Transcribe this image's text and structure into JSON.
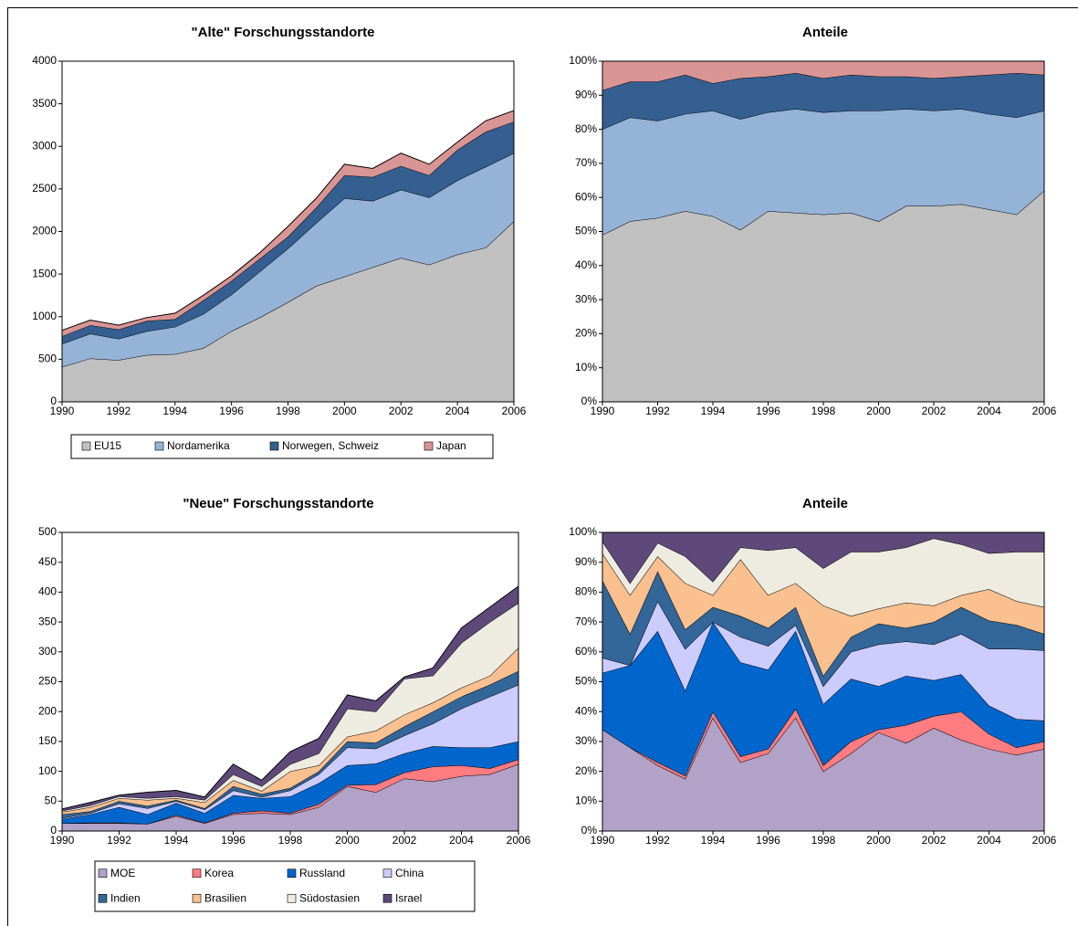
{
  "chart_data": [
    {
      "type": "area",
      "title": "\"Alte\" Forschungsstandorte",
      "legend": "bottom",
      "x": [
        1990,
        1991,
        1992,
        1993,
        1994,
        1995,
        1996,
        1997,
        1998,
        1999,
        2000,
        2001,
        2002,
        2003,
        2004,
        2005,
        2006
      ],
      "xlim": [
        1990,
        2006
      ],
      "xticks": [
        1990,
        1992,
        1994,
        1996,
        1998,
        2000,
        2002,
        2004,
        2006
      ],
      "ylim": [
        0,
        4000
      ],
      "yticks": [
        0,
        500,
        1000,
        1500,
        2000,
        2500,
        3000,
        3500,
        4000
      ],
      "series": [
        {
          "name": "EU15",
          "color": "#c0c0c0",
          "values": [
            410,
            510,
            490,
            550,
            560,
            630,
            830,
            990,
            1170,
            1360,
            1470,
            1580,
            1690,
            1610,
            1730,
            1810,
            2120
          ]
        },
        {
          "name": "Nordamerika",
          "color": "#95b3d7",
          "values": [
            270,
            290,
            250,
            280,
            320,
            400,
            430,
            540,
            630,
            740,
            920,
            780,
            800,
            790,
            870,
            950,
            800
          ]
        },
        {
          "name": "Norwegen, Schweiz",
          "color": "#355f91",
          "values": [
            90,
            100,
            110,
            120,
            90,
            160,
            160,
            150,
            140,
            180,
            270,
            280,
            280,
            260,
            360,
            410,
            370
          ]
        },
        {
          "name": "Japan",
          "color": "#d99594",
          "values": [
            70,
            60,
            50,
            40,
            70,
            60,
            60,
            70,
            120,
            110,
            130,
            100,
            150,
            130,
            90,
            130,
            130
          ]
        }
      ]
    },
    {
      "type": "area",
      "title": "Anteile",
      "x": [
        1990,
        1991,
        1992,
        1993,
        1994,
        1995,
        1996,
        1997,
        1998,
        1999,
        2000,
        2001,
        2002,
        2003,
        2004,
        2005,
        2006
      ],
      "xlim": [
        1990,
        2006
      ],
      "xticks": [
        1990,
        1992,
        1994,
        1996,
        1998,
        2000,
        2002,
        2004,
        2006
      ],
      "ylim": [
        0,
        100
      ],
      "yticks": [
        {
          "value": 0,
          "label": "0%"
        },
        {
          "value": 10,
          "label": "10%"
        },
        {
          "value": 20,
          "label": "20%"
        },
        {
          "value": 30,
          "label": "30%"
        },
        {
          "value": 40,
          "label": "40%"
        },
        {
          "value": 50,
          "label": "50%"
        },
        {
          "value": 60,
          "label": "60%"
        },
        {
          "value": 70,
          "label": "70%"
        },
        {
          "value": 80,
          "label": "80%"
        },
        {
          "value": 90,
          "label": "90%"
        },
        {
          "value": 100,
          "label": "100%"
        }
      ],
      "series": [
        {
          "color": "#c0c0c0",
          "values": [
            49,
            53,
            54,
            56,
            54.5,
            50.5,
            56,
            55.5,
            55,
            55.5,
            53,
            57.5,
            57.5,
            58,
            56.5,
            55,
            62
          ]
        },
        {
          "color": "#95b3d7",
          "values": [
            31,
            30.5,
            28.5,
            28.5,
            31,
            32.5,
            29,
            30.5,
            30,
            30,
            32.5,
            28.5,
            28,
            28,
            28,
            28.5,
            23.5
          ]
        },
        {
          "color": "#355f91",
          "values": [
            11.5,
            10.5,
            11.5,
            11.5,
            8,
            12,
            10.5,
            10.5,
            10,
            10.5,
            10,
            9.5,
            9.5,
            9.5,
            11.5,
            13,
            10.5
          ]
        },
        {
          "color": "#d99594",
          "values": [
            8.5,
            6,
            6,
            4,
            6.5,
            5,
            4.5,
            3.5,
            5,
            4,
            4.5,
            4.5,
            5,
            4.5,
            4,
            3.5,
            4
          ]
        }
      ]
    },
    {
      "type": "area",
      "title": "\"Neue\" Forschungsstandorte",
      "legend": "bottom",
      "x": [
        1990,
        1991,
        1992,
        1993,
        1994,
        1995,
        1996,
        1997,
        1998,
        1999,
        2000,
        2001,
        2002,
        2003,
        2004,
        2005,
        2006
      ],
      "xlim": [
        1990,
        2006
      ],
      "xticks": [
        1990,
        1992,
        1994,
        1996,
        1998,
        2000,
        2002,
        2004,
        2006
      ],
      "ylim": [
        0,
        500
      ],
      "yticks": [
        0,
        50,
        100,
        150,
        200,
        250,
        300,
        350,
        400,
        450,
        500
      ],
      "series": [
        {
          "name": "MOE",
          "color": "#b2a2c7",
          "values": [
            13,
            13,
            13,
            12,
            25,
            13,
            28,
            30,
            28,
            40,
            75,
            65,
            88,
            83,
            92,
            95,
            112
          ]
        },
        {
          "name": "Korea",
          "color": "#ff7c80",
          "values": [
            0,
            1,
            1,
            0,
            2,
            1,
            2,
            4,
            2,
            5,
            2,
            13,
            10,
            25,
            18,
            10,
            8
          ]
        },
        {
          "name": "Russland",
          "color": "#0066cc",
          "values": [
            7,
            14,
            26,
            16,
            20,
            16,
            30,
            21,
            28,
            35,
            33,
            35,
            32,
            34,
            30,
            35,
            30
          ]
        },
        {
          "name": "China",
          "color": "#ccccff",
          "values": [
            2,
            2,
            6,
            10,
            3,
            6,
            8,
            2,
            10,
            15,
            30,
            25,
            30,
            38,
            65,
            85,
            95
          ]
        },
        {
          "name": "Indien",
          "color": "#336699",
          "values": [
            6,
            3,
            4,
            4,
            2,
            2,
            7,
            5,
            4,
            5,
            10,
            10,
            15,
            20,
            20,
            20,
            23
          ]
        },
        {
          "name": "Brasilien",
          "color": "#fac090",
          "values": [
            4,
            7,
            5,
            10,
            3,
            10,
            10,
            5,
            28,
            10,
            8,
            20,
            20,
            15,
            15,
            15,
            39
          ]
        },
        {
          "name": "Südostasien",
          "color": "#eeece1",
          "values": [
            2,
            3,
            3,
            3,
            3,
            4,
            10,
            8,
            12,
            20,
            47,
            32,
            60,
            45,
            75,
            90,
            75
          ]
        },
        {
          "name": "Israel",
          "color": "#5f497a",
          "values": [
            3,
            5,
            2,
            10,
            10,
            5,
            17,
            10,
            21,
            25,
            23,
            18,
            3,
            13,
            25,
            25,
            28
          ]
        }
      ]
    },
    {
      "type": "area",
      "title": "Anteile",
      "x": [
        1990,
        1991,
        1992,
        1993,
        1994,
        1995,
        1996,
        1997,
        1998,
        1999,
        2000,
        2001,
        2002,
        2003,
        2004,
        2005,
        2006
      ],
      "xlim": [
        1990,
        2006
      ],
      "xticks": [
        1990,
        1992,
        1994,
        1996,
        1998,
        2000,
        2002,
        2004,
        2006
      ],
      "ylim": [
        0,
        100
      ],
      "yticks": [
        {
          "value": 0,
          "label": "0%"
        },
        {
          "value": 10,
          "label": "10%"
        },
        {
          "value": 20,
          "label": "20%"
        },
        {
          "value": 30,
          "label": "30%"
        },
        {
          "value": 40,
          "label": "40%"
        },
        {
          "value": 50,
          "label": "50%"
        },
        {
          "value": 60,
          "label": "60%"
        },
        {
          "value": 70,
          "label": "70%"
        },
        {
          "value": 80,
          "label": "80%"
        },
        {
          "value": 90,
          "label": "90%"
        },
        {
          "value": 100,
          "label": "100%"
        }
      ],
      "series": [
        {
          "color": "#b2a2c7",
          "values": [
            34,
            28,
            22,
            17.5,
            38,
            23,
            26,
            38,
            20,
            26,
            33,
            29.5,
            34.5,
            30.5,
            27.5,
            25.5,
            27.5
          ]
        },
        {
          "color": "#ff7c80",
          "values": [
            0,
            0,
            1,
            1,
            2,
            2,
            1.5,
            3,
            2,
            4,
            1,
            6,
            4,
            9.5,
            5,
            2.5,
            2.5
          ]
        },
        {
          "color": "#0066cc",
          "values": [
            19,
            27.5,
            44,
            28.5,
            30,
            31.5,
            26.5,
            26,
            20.5,
            21,
            14.5,
            16.5,
            12,
            12.5,
            9.5,
            9.5,
            7
          ]
        },
        {
          "color": "#ccccff",
          "values": [
            5,
            0,
            10,
            14,
            0,
            8.5,
            8,
            2,
            6,
            9,
            14,
            11.5,
            12,
            13.5,
            19,
            23.5,
            23.5
          ]
        },
        {
          "color": "#336699",
          "values": [
            26,
            10.5,
            10,
            6.5,
            5,
            7,
            6,
            6,
            3.5,
            5,
            7,
            4.5,
            7.5,
            9,
            9.5,
            8,
            5.5
          ]
        },
        {
          "color": "#fac090",
          "values": [
            9,
            13,
            5,
            15.5,
            4,
            19,
            11,
            8,
            23.5,
            7,
            5,
            8.5,
            5.5,
            4,
            10.5,
            8,
            9
          ]
        },
        {
          "color": "#eeece1",
          "values": [
            4,
            4,
            4.5,
            9,
            4.5,
            4,
            15,
            12,
            12.5,
            21.5,
            19,
            18.5,
            22.5,
            17,
            12,
            16.5,
            18.5
          ]
        },
        {
          "color": "#5f497a",
          "values": [
            3,
            17,
            3.5,
            8,
            16.5,
            5,
            6,
            5,
            12,
            6.5,
            6.5,
            5,
            2,
            4,
            7,
            6.5,
            6.5
          ]
        }
      ]
    }
  ]
}
